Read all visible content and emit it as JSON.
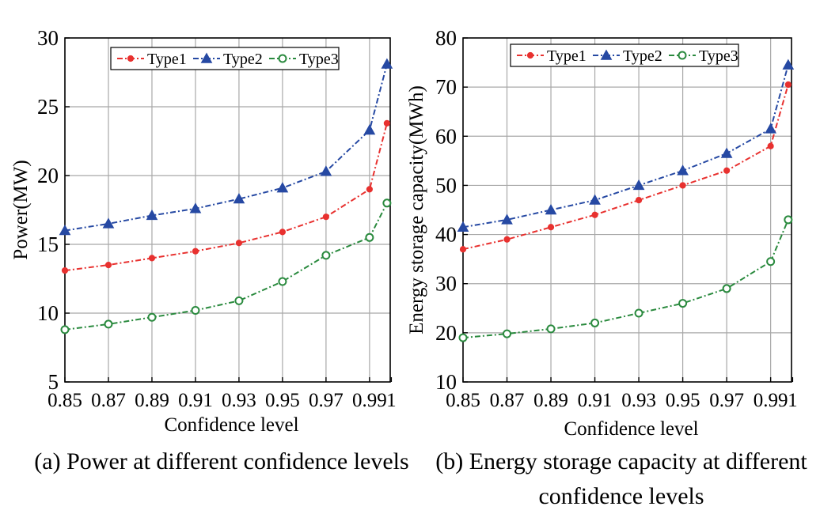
{
  "chart_data": [
    {
      "type": "line",
      "caption": "(a) Power at different confidence levels",
      "xlabel": "Confidence level",
      "ylabel": "Power(MW)",
      "x": [
        0.85,
        0.87,
        0.89,
        0.91,
        0.93,
        0.95,
        0.97,
        0.99,
        0.998
      ],
      "xticks": [
        0.85,
        0.87,
        0.89,
        0.91,
        0.93,
        0.95,
        0.97,
        0.99,
        1
      ],
      "xtick_labels": [
        "0.85",
        "0.87",
        "0.89",
        "0.91",
        "0.93",
        "0.95",
        "0.97",
        "0.99",
        "1"
      ],
      "xlim": [
        0.85,
        0.9995
      ],
      "ylim": [
        5,
        30
      ],
      "yticks": [
        5,
        10,
        15,
        20,
        25,
        30
      ],
      "grid": true,
      "legend": "top",
      "series": [
        {
          "name": "Type1",
          "color": "#e8312f",
          "marker": "dot",
          "values": [
            13.1,
            13.5,
            14.0,
            14.5,
            15.1,
            15.9,
            17.0,
            19.0,
            23.8
          ]
        },
        {
          "name": "Type2",
          "color": "#2649a3",
          "marker": "triangle",
          "values": [
            16.0,
            16.5,
            17.1,
            17.6,
            18.3,
            19.1,
            20.3,
            23.3,
            28.1
          ]
        },
        {
          "name": "Type3",
          "color": "#2a8a3e",
          "marker": "circle",
          "values": [
            8.8,
            9.2,
            9.7,
            10.2,
            10.9,
            12.3,
            14.2,
            15.5,
            18.0
          ]
        }
      ]
    },
    {
      "type": "line",
      "caption": "(b) Energy storage capacity at different confidence levels",
      "xlabel": "Confidence level",
      "ylabel": "Energy storage capacity(MWh)",
      "x": [
        0.85,
        0.87,
        0.89,
        0.91,
        0.93,
        0.95,
        0.97,
        0.99,
        0.998
      ],
      "xticks": [
        0.85,
        0.87,
        0.89,
        0.91,
        0.93,
        0.95,
        0.97,
        0.99,
        1
      ],
      "xtick_labels": [
        "0.85",
        "0.87",
        "0.89",
        "0.91",
        "0.93",
        "0.95",
        "0.97",
        "0.99",
        "1"
      ],
      "xlim": [
        0.85,
        0.9995
      ],
      "ylim": [
        10,
        80
      ],
      "yticks": [
        10,
        20,
        30,
        40,
        50,
        60,
        70,
        80
      ],
      "grid": true,
      "legend": "top",
      "series": [
        {
          "name": "Type1",
          "color": "#e8312f",
          "marker": "dot",
          "values": [
            37.0,
            39.0,
            41.5,
            44.0,
            47.0,
            50.0,
            53.0,
            58.0,
            70.5
          ]
        },
        {
          "name": "Type2",
          "color": "#2649a3",
          "marker": "triangle",
          "values": [
            41.5,
            43.0,
            45.0,
            47.0,
            50.0,
            53.0,
            56.5,
            61.5,
            74.5
          ]
        },
        {
          "name": "Type3",
          "color": "#2a8a3e",
          "marker": "circle",
          "values": [
            19.0,
            19.8,
            20.8,
            22.0,
            24.0,
            26.0,
            29.0,
            34.5,
            43.0
          ]
        }
      ]
    }
  ]
}
